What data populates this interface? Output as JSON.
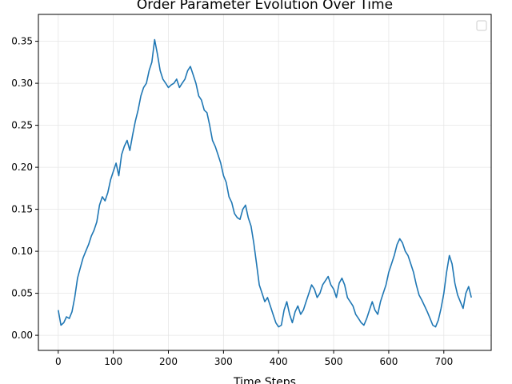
{
  "chart_data": {
    "type": "line",
    "title": "Order Parameter Evolution Over Time",
    "xlabel": "Time Steps",
    "ylabel": "",
    "xlim": [
      -36,
      786
    ],
    "ylim": [
      -0.018,
      0.382
    ],
    "xticks": [
      0,
      100,
      200,
      300,
      400,
      500,
      600,
      700
    ],
    "yticks": [
      0.0,
      0.05,
      0.1,
      0.15,
      0.2,
      0.25,
      0.3,
      0.35
    ],
    "ytick_labels": [
      "0.00",
      "0.05",
      "0.10",
      "0.15",
      "0.20",
      "0.25",
      "0.30",
      "0.35"
    ],
    "grid": true,
    "legend": "top-right, empty",
    "colors": {
      "series": "#1f77b4",
      "grid": "#e6e6e6",
      "axis": "#000000"
    },
    "series": [
      {
        "name": "",
        "x": [
          0,
          5,
          10,
          15,
          20,
          25,
          30,
          35,
          40,
          45,
          50,
          55,
          60,
          65,
          70,
          75,
          80,
          85,
          90,
          95,
          100,
          105,
          110,
          115,
          120,
          125,
          130,
          135,
          140,
          145,
          150,
          155,
          160,
          165,
          170,
          175,
          180,
          185,
          190,
          195,
          200,
          205,
          210,
          215,
          220,
          225,
          230,
          235,
          240,
          245,
          250,
          255,
          260,
          265,
          270,
          275,
          280,
          285,
          290,
          295,
          300,
          305,
          310,
          315,
          320,
          325,
          330,
          335,
          340,
          345,
          350,
          355,
          360,
          365,
          370,
          375,
          380,
          385,
          390,
          395,
          400,
          405,
          410,
          415,
          420,
          425,
          430,
          435,
          440,
          445,
          450,
          455,
          460,
          465,
          470,
          475,
          480,
          485,
          490,
          495,
          500,
          505,
          510,
          515,
          520,
          525,
          530,
          535,
          540,
          545,
          550,
          555,
          560,
          565,
          570,
          575,
          580,
          585,
          590,
          595,
          600,
          605,
          610,
          615,
          620,
          625,
          630,
          635,
          640,
          645,
          650,
          655,
          660,
          665,
          670,
          675,
          680,
          685,
          690,
          695,
          700,
          705,
          710,
          715,
          720,
          725,
          730,
          735,
          740,
          745,
          750
        ],
        "y": [
          0.03,
          0.012,
          0.015,
          0.022,
          0.02,
          0.028,
          0.045,
          0.068,
          0.08,
          0.092,
          0.1,
          0.108,
          0.118,
          0.125,
          0.135,
          0.155,
          0.165,
          0.16,
          0.17,
          0.185,
          0.195,
          0.205,
          0.19,
          0.215,
          0.225,
          0.232,
          0.22,
          0.238,
          0.255,
          0.268,
          0.285,
          0.295,
          0.3,
          0.315,
          0.325,
          0.352,
          0.335,
          0.315,
          0.305,
          0.3,
          0.295,
          0.298,
          0.3,
          0.305,
          0.295,
          0.3,
          0.305,
          0.315,
          0.32,
          0.31,
          0.3,
          0.285,
          0.28,
          0.268,
          0.265,
          0.25,
          0.232,
          0.225,
          0.215,
          0.205,
          0.19,
          0.182,
          0.165,
          0.158,
          0.145,
          0.14,
          0.138,
          0.15,
          0.155,
          0.14,
          0.13,
          0.11,
          0.085,
          0.06,
          0.05,
          0.04,
          0.045,
          0.035,
          0.025,
          0.015,
          0.01,
          0.012,
          0.03,
          0.04,
          0.025,
          0.015,
          0.028,
          0.035,
          0.025,
          0.03,
          0.04,
          0.05,
          0.06,
          0.055,
          0.045,
          0.05,
          0.06,
          0.065,
          0.07,
          0.06,
          0.055,
          0.045,
          0.062,
          0.068,
          0.06,
          0.045,
          0.04,
          0.035,
          0.025,
          0.02,
          0.015,
          0.012,
          0.02,
          0.03,
          0.04,
          0.03,
          0.025,
          0.04,
          0.05,
          0.06,
          0.075,
          0.085,
          0.095,
          0.108,
          0.115,
          0.11,
          0.1,
          0.095,
          0.085,
          0.075,
          0.06,
          0.048,
          0.042,
          0.035,
          0.028,
          0.02,
          0.012,
          0.01,
          0.018,
          0.032,
          0.05,
          0.075,
          0.095,
          0.085,
          0.062,
          0.048,
          0.04,
          0.032,
          0.05,
          0.058,
          0.045
        ]
      }
    ]
  }
}
